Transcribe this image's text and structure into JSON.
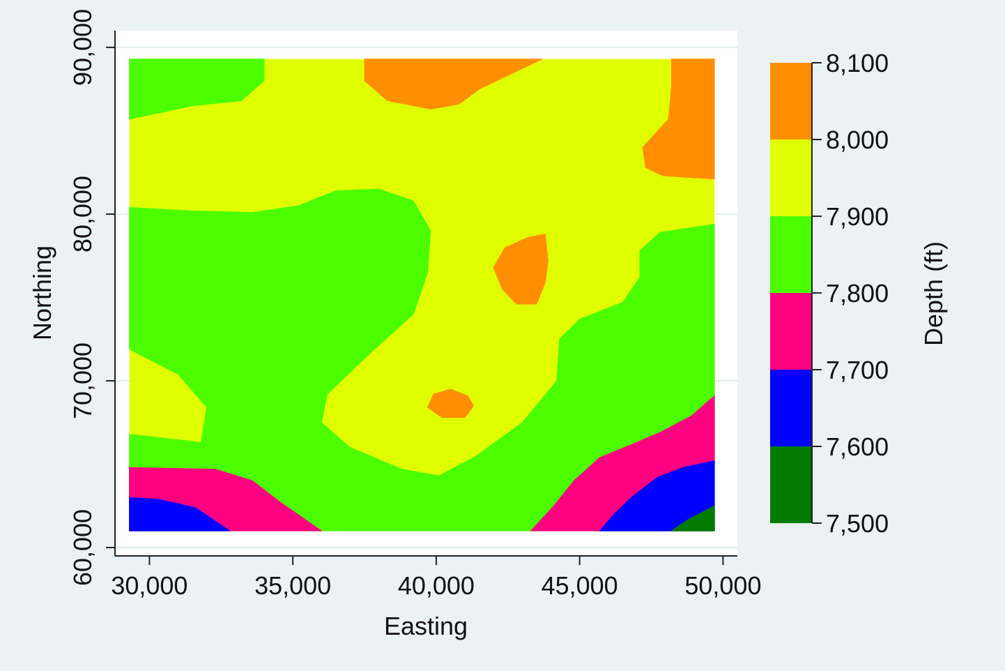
{
  "chart_data": {
    "type": "heatmap",
    "subtype": "filled-contour",
    "title": "",
    "xlabel": "Easting",
    "ylabel": "Northing",
    "zlabel": "Depth (ft)",
    "xlim": [
      28800,
      50500
    ],
    "ylim": [
      59500,
      91000
    ],
    "data_extent": {
      "x": [
        29300,
        49700
      ],
      "y": [
        61000,
        89300
      ]
    },
    "x_ticks": [
      30000,
      35000,
      40000,
      45000,
      50000
    ],
    "x_tick_labels": [
      "30,000",
      "35,000",
      "40,000",
      "45,000",
      "50,000"
    ],
    "y_ticks": [
      60000,
      70000,
      80000,
      90000
    ],
    "y_tick_labels": [
      "60,000",
      "70,000",
      "80,000",
      "90,000"
    ],
    "grid": true,
    "legend_position": "right",
    "contour_levels": [
      7500,
      7600,
      7700,
      7800,
      7900,
      8000,
      8100
    ],
    "contour_level_labels": [
      "7,500",
      "7,600",
      "7,700",
      "7,800",
      "7,900",
      "8,000",
      "8,100"
    ],
    "bands": [
      {
        "range": [
          7500,
          7600
        ],
        "color": "#007a00"
      },
      {
        "range": [
          7600,
          7700
        ],
        "color": "#0000ff"
      },
      {
        "range": [
          7700,
          7800
        ],
        "color": "#ff0080"
      },
      {
        "range": [
          7800,
          7900
        ],
        "color": "#4cff00"
      },
      {
        "range": [
          7900,
          8000
        ],
        "color": "#dfff00"
      },
      {
        "range": [
          8000,
          8100
        ],
        "color": "#ff8f00"
      }
    ],
    "regions": [
      {
        "band": "7800-7900",
        "points": [
          [
            29300,
            89300
          ],
          [
            34000,
            89300
          ],
          [
            34000,
            88000
          ],
          [
            33200,
            86800
          ],
          [
            31500,
            86500
          ],
          [
            29300,
            85700
          ]
        ]
      },
      {
        "band": "7800-7900",
        "points": [
          [
            29300,
            80400
          ],
          [
            31400,
            80200
          ],
          [
            33600,
            80100
          ],
          [
            35200,
            80500
          ],
          [
            36500,
            81400
          ],
          [
            38000,
            81500
          ],
          [
            39200,
            80800
          ],
          [
            39800,
            79000
          ],
          [
            39700,
            76500
          ],
          [
            39200,
            74000
          ],
          [
            37600,
            71500
          ],
          [
            36200,
            69200
          ],
          [
            36000,
            67500
          ],
          [
            37000,
            66000
          ],
          [
            38800,
            64700
          ],
          [
            40100,
            64300
          ],
          [
            41400,
            65500
          ],
          [
            43000,
            67500
          ],
          [
            44200,
            70000
          ],
          [
            44300,
            72500
          ],
          [
            45000,
            73700
          ],
          [
            46500,
            74700
          ],
          [
            47100,
            76200
          ],
          [
            47100,
            77800
          ],
          [
            47800,
            78900
          ],
          [
            49700,
            79400
          ],
          [
            49700,
            61000
          ],
          [
            29300,
            61000
          ],
          [
            29300,
            66800
          ],
          [
            31800,
            66300
          ],
          [
            32000,
            68400
          ],
          [
            31000,
            70400
          ],
          [
            29300,
            71900
          ]
        ]
      },
      {
        "band": "8000-8100",
        "points": [
          [
            37500,
            89300
          ],
          [
            43700,
            89300
          ],
          [
            42600,
            88400
          ],
          [
            41500,
            87500
          ],
          [
            40800,
            86600
          ],
          [
            39800,
            86300
          ],
          [
            38300,
            86800
          ],
          [
            37500,
            88000
          ]
        ]
      },
      {
        "band": "8000-8100",
        "points": [
          [
            48200,
            89300
          ],
          [
            49700,
            89300
          ],
          [
            49700,
            82100
          ],
          [
            47900,
            82300
          ],
          [
            47300,
            82800
          ],
          [
            47200,
            84000
          ],
          [
            48100,
            85700
          ],
          [
            48200,
            87600
          ]
        ]
      },
      {
        "band": "8000-8100",
        "points": [
          [
            42000,
            76800
          ],
          [
            42400,
            78000
          ],
          [
            43200,
            78600
          ],
          [
            43800,
            78800
          ],
          [
            43900,
            77200
          ],
          [
            43800,
            75900
          ],
          [
            43500,
            74600
          ],
          [
            42800,
            74600
          ],
          [
            42300,
            75500
          ]
        ]
      },
      {
        "band": "8000-8100",
        "points": [
          [
            39700,
            68400
          ],
          [
            39900,
            69200
          ],
          [
            40500,
            69500
          ],
          [
            41100,
            69100
          ],
          [
            41300,
            68500
          ],
          [
            41000,
            67800
          ],
          [
            40200,
            67800
          ]
        ]
      },
      {
        "band": "7700-7800",
        "points": [
          [
            29300,
            64800
          ],
          [
            32300,
            64700
          ],
          [
            33600,
            64000
          ],
          [
            34500,
            62800
          ],
          [
            36000,
            61000
          ],
          [
            29300,
            61000
          ]
        ]
      },
      {
        "band": "7700-7800",
        "points": [
          [
            43300,
            61000
          ],
          [
            44100,
            62500
          ],
          [
            44800,
            64000
          ],
          [
            45700,
            65400
          ],
          [
            46700,
            66100
          ],
          [
            47800,
            66900
          ],
          [
            48900,
            67900
          ],
          [
            49700,
            69100
          ],
          [
            49700,
            61000
          ]
        ]
      },
      {
        "band": "7600-7700",
        "points": [
          [
            29300,
            63000
          ],
          [
            30300,
            62900
          ],
          [
            31600,
            62400
          ],
          [
            32800,
            61000
          ],
          [
            29300,
            61000
          ]
        ]
      },
      {
        "band": "7600-7700",
        "points": [
          [
            45700,
            61000
          ],
          [
            46200,
            62000
          ],
          [
            46800,
            63000
          ],
          [
            47700,
            64200
          ],
          [
            48600,
            64800
          ],
          [
            49700,
            65200
          ],
          [
            49700,
            61000
          ]
        ]
      },
      {
        "band": "7500-7600",
        "points": [
          [
            48200,
            61000
          ],
          [
            48800,
            61700
          ],
          [
            49700,
            62500
          ],
          [
            49700,
            61000
          ]
        ]
      }
    ]
  }
}
